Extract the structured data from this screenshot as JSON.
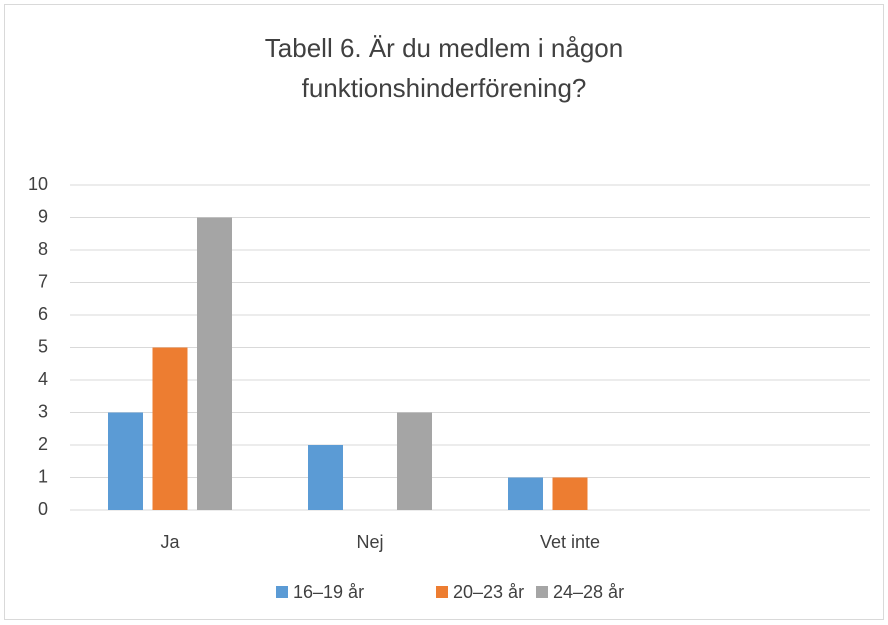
{
  "chart_data": {
    "type": "bar",
    "title": [
      "Tabell 6. Är du medlem i någon",
      "funktionshinderförening?"
    ],
    "categories": [
      "Ja",
      "Nej",
      "Vet inte",
      null
    ],
    "series": [
      {
        "name": "16–19 år",
        "color": "#5b9bd5",
        "values": [
          3,
          2,
          1,
          null
        ]
      },
      {
        "name": "20–23 år",
        "color": "#ed7d31",
        "values": [
          5,
          0,
          1,
          null
        ]
      },
      {
        "name": "24–28 år",
        "color": "#a5a5a5",
        "values": [
          9,
          3,
          0,
          null
        ]
      }
    ],
    "ylim": [
      0,
      10
    ],
    "yticks": [
      0,
      1,
      2,
      3,
      4,
      5,
      6,
      7,
      8,
      9,
      10
    ],
    "grid": true,
    "legend": "bottom"
  }
}
